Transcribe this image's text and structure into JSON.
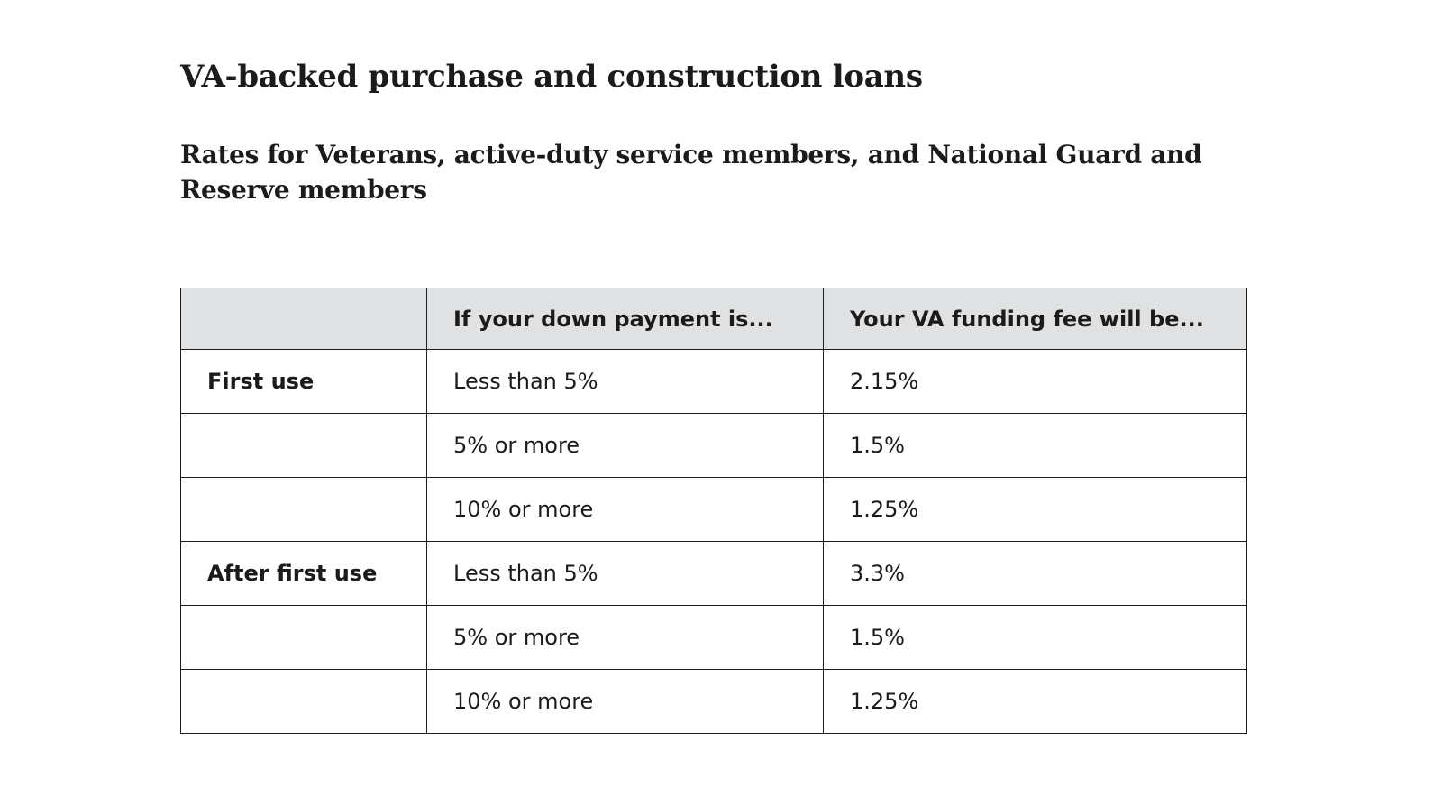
{
  "page": {
    "title": "VA-backed purchase and construction loans",
    "subtitle": "Rates for Veterans, active-duty service members, and National Guard and Reserve members"
  },
  "table": {
    "headers": [
      "",
      "If your down payment is...",
      "Your VA funding fee will be..."
    ],
    "rows": [
      {
        "label": "First use",
        "down_payment": "Less than 5%",
        "fee": "2.15%"
      },
      {
        "label": "",
        "down_payment": "5% or more",
        "fee": "1.5%"
      },
      {
        "label": "",
        "down_payment": "10% or more",
        "fee": "1.25%"
      },
      {
        "label": "After first use",
        "down_payment": "Less than 5%",
        "fee": "3.3%"
      },
      {
        "label": "",
        "down_payment": "5% or more",
        "fee": "1.5%"
      },
      {
        "label": "",
        "down_payment": "10% or more",
        "fee": "1.25%"
      }
    ]
  },
  "colors": {
    "text": "#1b1b1b",
    "header_background": "#dfe1e2",
    "border": "#1b1b1b",
    "background": "#ffffff"
  }
}
